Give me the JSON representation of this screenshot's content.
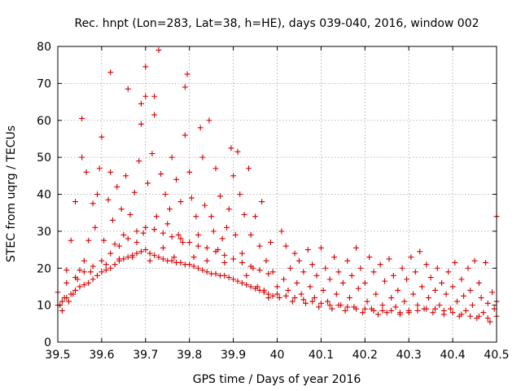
{
  "chart_data": {
    "type": "scatter",
    "title": "Rec. hnpt (Lon=283, Lat=38, h=HE), days 039-040, 2016, window 002",
    "xlabel": "GPS time / Days of year 2016",
    "ylabel": "STEC from uqrg / TECUs",
    "xlim": [
      39.5,
      40.5
    ],
    "ylim": [
      0,
      80
    ],
    "xticks": [
      39.5,
      39.6,
      39.7,
      39.8,
      39.9,
      40,
      40.1,
      40.2,
      40.3,
      40.4,
      40.5
    ],
    "xtick_labels": [
      "39.5",
      "39.6",
      "39.7",
      "39.8",
      "39.9",
      "40",
      "40.1",
      "40.2",
      "40.3",
      "40.4",
      "40.5"
    ],
    "yticks": [
      0,
      10,
      20,
      30,
      40,
      50,
      60,
      70,
      80
    ],
    "ytick_labels": [
      "0",
      "10",
      "20",
      "30",
      "40",
      "50",
      "60",
      "70",
      "80"
    ],
    "grid": true,
    "marker": "plus",
    "series": [
      {
        "color": "#d40000",
        "points": [
          [
            39.5,
            13.5
          ],
          [
            39.505,
            10.0
          ],
          [
            39.51,
            8.5
          ],
          [
            39.515,
            12.0
          ],
          [
            39.52,
            19.5
          ],
          [
            39.525,
            11.0
          ],
          [
            39.53,
            27.5
          ],
          [
            39.535,
            13.0
          ],
          [
            39.54,
            38.0
          ],
          [
            39.545,
            17.0
          ],
          [
            39.55,
            19.5
          ],
          [
            39.555,
            60.5
          ],
          [
            39.555,
            50.0
          ],
          [
            39.56,
            22.0
          ],
          [
            39.565,
            46.0
          ],
          [
            39.57,
            27.5
          ],
          [
            39.575,
            19.0
          ],
          [
            39.58,
            37.5
          ],
          [
            39.585,
            31.0
          ],
          [
            39.59,
            40.0
          ],
          [
            39.595,
            47.0
          ],
          [
            39.6,
            55.5
          ],
          [
            39.605,
            27.5
          ],
          [
            39.61,
            21.0
          ],
          [
            39.615,
            38.5
          ],
          [
            39.62,
            73.0
          ],
          [
            39.62,
            46.0
          ],
          [
            39.625,
            33.0
          ],
          [
            39.63,
            26.5
          ],
          [
            39.635,
            42.0
          ],
          [
            39.64,
            22.5
          ],
          [
            39.645,
            36.0
          ],
          [
            39.65,
            29.0
          ],
          [
            39.655,
            45.0
          ],
          [
            39.66,
            68.5
          ],
          [
            39.665,
            34.5
          ],
          [
            39.67,
            23.0
          ],
          [
            39.675,
            40.5
          ],
          [
            39.68,
            27.0
          ],
          [
            39.685,
            49.0
          ],
          [
            39.69,
            59.0
          ],
          [
            39.69,
            64.5
          ],
          [
            39.695,
            29.5
          ],
          [
            39.7,
            74.5
          ],
          [
            39.7,
            66.5
          ],
          [
            39.705,
            43.0
          ],
          [
            39.71,
            22.0
          ],
          [
            39.715,
            51.0
          ],
          [
            39.72,
            66.5
          ],
          [
            39.72,
            61.5
          ],
          [
            39.725,
            34.0
          ],
          [
            39.73,
            79.0
          ],
          [
            39.735,
            45.5
          ],
          [
            39.74,
            25.5
          ],
          [
            39.745,
            40.0
          ],
          [
            39.75,
            32.0
          ],
          [
            39.755,
            36.0
          ],
          [
            39.76,
            50.0
          ],
          [
            39.765,
            23.0
          ],
          [
            39.77,
            44.0
          ],
          [
            39.775,
            29.0
          ],
          [
            39.78,
            38.0
          ],
          [
            39.785,
            27.0
          ],
          [
            39.79,
            56.0
          ],
          [
            39.79,
            69.0
          ],
          [
            39.795,
            72.5
          ],
          [
            39.8,
            46.0
          ],
          [
            39.805,
            39.0
          ],
          [
            39.81,
            23.0
          ],
          [
            39.815,
            34.0
          ],
          [
            39.82,
            29.0
          ],
          [
            39.825,
            58.0
          ],
          [
            39.83,
            50.0
          ],
          [
            39.835,
            37.0
          ],
          [
            39.84,
            22.0
          ],
          [
            39.845,
            60.0
          ],
          [
            39.85,
            34.0
          ],
          [
            39.855,
            30.0
          ],
          [
            39.86,
            47.0
          ],
          [
            39.865,
            25.0
          ],
          [
            39.87,
            39.5
          ],
          [
            39.875,
            28.0
          ],
          [
            39.88,
            21.5
          ],
          [
            39.885,
            31.0
          ],
          [
            39.89,
            36.0
          ],
          [
            39.895,
            52.5
          ],
          [
            39.9,
            45.0
          ],
          [
            39.905,
            29.0
          ],
          [
            39.91,
            51.5
          ],
          [
            39.915,
            40.0
          ],
          [
            39.92,
            24.0
          ],
          [
            39.925,
            34.5
          ],
          [
            39.93,
            18.0
          ],
          [
            39.935,
            47.0
          ],
          [
            39.94,
            29.0
          ],
          [
            39.945,
            20.0
          ],
          [
            39.95,
            34.0
          ],
          [
            39.955,
            15.0
          ],
          [
            39.96,
            26.0
          ],
          [
            39.965,
            38.0
          ],
          [
            39.97,
            14.0
          ],
          [
            39.975,
            22.0
          ],
          [
            39.98,
            12.0
          ],
          [
            39.985,
            27.0
          ],
          [
            39.99,
            19.0
          ],
          [
            39.5,
            10.0
          ],
          [
            39.51,
            11.0
          ],
          [
            39.52,
            12.0
          ],
          [
            39.53,
            13.0
          ],
          [
            39.54,
            14.0
          ],
          [
            39.55,
            15.0
          ],
          [
            39.56,
            15.5
          ],
          [
            39.57,
            16.0
          ],
          [
            39.58,
            17.0
          ],
          [
            39.59,
            18.0
          ],
          [
            39.6,
            19.0
          ],
          [
            39.61,
            19.5
          ],
          [
            39.62,
            20.0
          ],
          [
            39.63,
            21.0
          ],
          [
            39.64,
            22.0
          ],
          [
            39.65,
            22.5
          ],
          [
            39.66,
            23.0
          ],
          [
            39.67,
            23.5
          ],
          [
            39.68,
            24.0
          ],
          [
            39.69,
            24.5
          ],
          [
            39.7,
            25.0
          ],
          [
            39.71,
            24.0
          ],
          [
            39.72,
            23.5
          ],
          [
            39.73,
            23.0
          ],
          [
            39.74,
            22.5
          ],
          [
            39.75,
            22.0
          ],
          [
            39.76,
            22.0
          ],
          [
            39.77,
            21.5
          ],
          [
            39.78,
            21.5
          ],
          [
            39.79,
            21.0
          ],
          [
            39.8,
            21.0
          ],
          [
            39.81,
            20.5
          ],
          [
            39.82,
            20.0
          ],
          [
            39.83,
            19.5
          ],
          [
            39.84,
            19.0
          ],
          [
            39.85,
            18.5
          ],
          [
            39.86,
            18.5
          ],
          [
            39.87,
            18.0
          ],
          [
            39.88,
            18.0
          ],
          [
            39.89,
            17.5
          ],
          [
            39.9,
            17.0
          ],
          [
            39.91,
            16.5
          ],
          [
            39.92,
            16.0
          ],
          [
            39.93,
            15.5
          ],
          [
            39.94,
            15.0
          ],
          [
            39.95,
            14.5
          ],
          [
            39.96,
            14.0
          ],
          [
            39.97,
            13.5
          ],
          [
            39.98,
            13.0
          ],
          [
            39.99,
            12.5
          ],
          [
            39.52,
            16.0
          ],
          [
            39.54,
            17.5
          ],
          [
            39.56,
            19.0
          ],
          [
            39.58,
            20.5
          ],
          [
            39.6,
            22.0
          ],
          [
            39.62,
            24.0
          ],
          [
            39.64,
            26.0
          ],
          [
            39.66,
            28.0
          ],
          [
            39.68,
            30.0
          ],
          [
            39.7,
            31.0
          ],
          [
            39.72,
            30.5
          ],
          [
            39.74,
            29.5
          ],
          [
            39.76,
            28.5
          ],
          [
            39.78,
            28.0
          ],
          [
            39.8,
            27.0
          ],
          [
            39.82,
            26.0
          ],
          [
            39.84,
            25.5
          ],
          [
            39.86,
            24.5
          ],
          [
            39.88,
            23.5
          ],
          [
            39.9,
            22.5
          ],
          [
            39.92,
            21.5
          ],
          [
            39.94,
            20.5
          ],
          [
            39.96,
            19.5
          ],
          [
            39.98,
            18.5
          ],
          [
            40.0,
            15.0
          ],
          [
            40.005,
            12.0
          ],
          [
            40.01,
            30.0
          ],
          [
            40.015,
            17.0
          ],
          [
            40.02,
            26.0
          ],
          [
            40.025,
            14.0
          ],
          [
            40.03,
            20.0
          ],
          [
            40.035,
            11.0
          ],
          [
            40.04,
            24.0
          ],
          [
            40.045,
            16.0
          ],
          [
            40.05,
            22.0
          ],
          [
            40.055,
            13.0
          ],
          [
            40.06,
            19.0
          ],
          [
            40.065,
            10.5
          ],
          [
            40.07,
            25.0
          ],
          [
            40.075,
            15.0
          ],
          [
            40.08,
            21.0
          ],
          [
            40.085,
            12.0
          ],
          [
            40.09,
            18.0
          ],
          [
            40.095,
            9.5
          ],
          [
            40.1,
            25.5
          ],
          [
            40.105,
            14.0
          ],
          [
            40.11,
            20.0
          ],
          [
            40.115,
            11.0
          ],
          [
            40.12,
            17.0
          ],
          [
            40.125,
            9.0
          ],
          [
            40.13,
            23.0
          ],
          [
            40.135,
            13.0
          ],
          [
            40.14,
            19.0
          ],
          [
            40.145,
            10.0
          ],
          [
            40.15,
            16.0
          ],
          [
            40.155,
            8.5
          ],
          [
            40.16,
            22.0
          ],
          [
            40.165,
            12.0
          ],
          [
            40.17,
            18.0
          ],
          [
            40.175,
            9.5
          ],
          [
            40.18,
            25.5
          ],
          [
            40.185,
            14.5
          ],
          [
            40.19,
            20.0
          ],
          [
            40.195,
            8.0
          ],
          [
            40.2,
            16.0
          ],
          [
            40.205,
            11.0
          ],
          [
            40.21,
            23.0
          ],
          [
            40.215,
            9.0
          ],
          [
            40.22,
            19.0
          ],
          [
            40.225,
            13.0
          ],
          [
            40.23,
            7.5
          ],
          [
            40.235,
            21.0
          ],
          [
            40.24,
            10.0
          ],
          [
            40.245,
            16.5
          ],
          [
            40.25,
            8.0
          ],
          [
            40.255,
            22.5
          ],
          [
            40.26,
            12.0
          ],
          [
            40.265,
            18.0
          ],
          [
            40.27,
            9.5
          ],
          [
            40.275,
            14.0
          ],
          [
            40.28,
            7.5
          ],
          [
            40.285,
            20.0
          ],
          [
            40.29,
            11.0
          ],
          [
            40.295,
            17.0
          ],
          [
            40.3,
            8.5
          ],
          [
            40.305,
            23.0
          ],
          [
            40.31,
            13.0
          ],
          [
            40.315,
            19.0
          ],
          [
            40.32,
            10.0
          ],
          [
            40.325,
            24.5
          ],
          [
            40.33,
            15.0
          ],
          [
            40.335,
            9.0
          ],
          [
            40.34,
            21.0
          ],
          [
            40.345,
            12.0
          ],
          [
            40.35,
            17.5
          ],
          [
            40.355,
            8.0
          ],
          [
            40.36,
            14.0
          ],
          [
            40.365,
            20.0
          ],
          [
            40.37,
            10.0
          ],
          [
            40.375,
            16.0
          ],
          [
            40.38,
            7.5
          ],
          [
            40.385,
            13.0
          ],
          [
            40.39,
            19.0
          ],
          [
            40.395,
            9.0
          ],
          [
            40.4,
            15.0
          ],
          [
            40.405,
            21.5
          ],
          [
            40.41,
            11.0
          ],
          [
            40.415,
            7.0
          ],
          [
            40.42,
            17.0
          ],
          [
            40.425,
            12.5
          ],
          [
            40.43,
            8.5
          ],
          [
            40.435,
            20.0
          ],
          [
            40.44,
            14.0
          ],
          [
            40.445,
            10.0
          ],
          [
            40.45,
            22.0
          ],
          [
            40.455,
            6.5
          ],
          [
            40.46,
            16.0
          ],
          [
            40.465,
            12.0
          ],
          [
            40.47,
            8.0
          ],
          [
            40.475,
            21.5
          ],
          [
            40.48,
            10.5
          ],
          [
            40.485,
            5.5
          ],
          [
            40.49,
            13.5
          ],
          [
            40.495,
            9.0
          ],
          [
            40.5,
            34.0
          ],
          [
            40.5,
            11.0
          ],
          [
            40.0,
            13.0
          ],
          [
            40.02,
            12.5
          ],
          [
            40.04,
            12.0
          ],
          [
            40.06,
            11.5
          ],
          [
            40.08,
            11.0
          ],
          [
            40.1,
            10.5
          ],
          [
            40.12,
            10.0
          ],
          [
            40.14,
            10.0
          ],
          [
            40.16,
            9.5
          ],
          [
            40.18,
            9.0
          ],
          [
            40.2,
            9.0
          ],
          [
            40.22,
            8.5
          ],
          [
            40.24,
            8.5
          ],
          [
            40.26,
            8.5
          ],
          [
            40.28,
            8.0
          ],
          [
            40.3,
            8.0
          ],
          [
            40.32,
            8.5
          ],
          [
            40.34,
            9.0
          ],
          [
            40.36,
            9.0
          ],
          [
            40.38,
            8.5
          ],
          [
            40.4,
            8.0
          ],
          [
            40.42,
            7.5
          ],
          [
            40.44,
            7.0
          ],
          [
            40.46,
            7.0
          ],
          [
            40.48,
            6.5
          ],
          [
            40.5,
            7.0
          ]
        ]
      }
    ]
  }
}
